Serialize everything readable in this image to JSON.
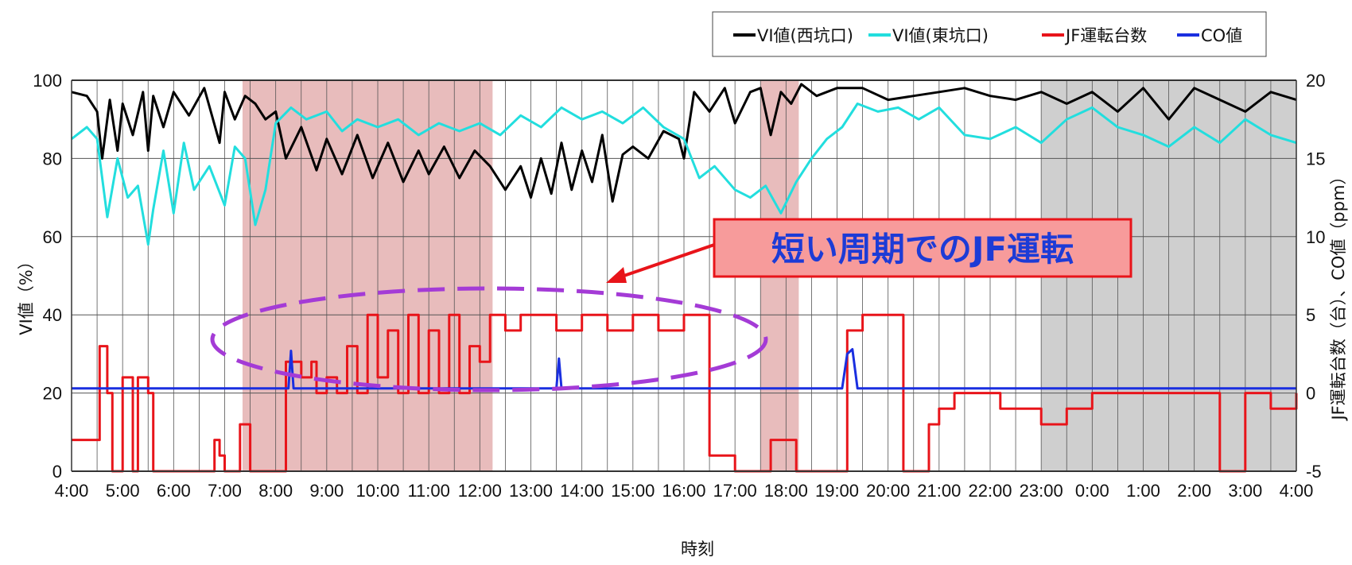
{
  "chart_data": {
    "type": "line",
    "title": "",
    "xlabel": "時刻",
    "ylabel_left": "VI値（%）",
    "ylabel_right": "JF運転台数（台）、CO値（ppm）",
    "x_ticks": [
      "4:00",
      "5:00",
      "6:00",
      "7:00",
      "8:00",
      "9:00",
      "10:00",
      "11:00",
      "12:00",
      "13:00",
      "14:00",
      "15:00",
      "16:00",
      "17:00",
      "18:00",
      "19:00",
      "20:00",
      "21:00",
      "22:00",
      "23:00",
      "0:00",
      "1:00",
      "2:00",
      "3:00",
      "4:00"
    ],
    "y_left_ticks": [
      "0",
      "20",
      "40",
      "60",
      "80",
      "100"
    ],
    "y_right_ticks": [
      "-5",
      "0",
      "5",
      "10",
      "15",
      "20"
    ],
    "ylim_left": [
      0,
      100
    ],
    "ylim_right": [
      -5,
      20
    ],
    "grid": true,
    "legend_position": "top-right",
    "colors": {
      "vi_west": "#000000",
      "vi_east": "#22dede",
      "jf": "#e8141a",
      "co": "#1a2fe0",
      "pink_band": "#e8bcbc",
      "gray_band": "#cfcfcf",
      "ellipse": "#a43bd6",
      "callout_fill": "#f79b9b",
      "callout_border": "#e8141a"
    },
    "shaded_bands": [
      {
        "type": "pink",
        "start_hour": 7.35,
        "end_hour": 12.25
      },
      {
        "type": "pink",
        "start_hour": 17.5,
        "end_hour": 18.25
      },
      {
        "type": "gray",
        "start_hour": 23.0,
        "end_hour": 28.0
      }
    ],
    "series": [
      {
        "name": "VI値(西坑口)",
        "key": "vi_west",
        "axis": "left",
        "x": [
          4.0,
          4.3,
          4.5,
          4.6,
          4.75,
          4.9,
          5.0,
          5.2,
          5.4,
          5.5,
          5.6,
          5.8,
          6.0,
          6.3,
          6.6,
          6.9,
          7.0,
          7.2,
          7.4,
          7.6,
          7.8,
          8.0,
          8.2,
          8.5,
          8.8,
          9.0,
          9.3,
          9.6,
          9.9,
          10.2,
          10.5,
          10.8,
          11.0,
          11.3,
          11.6,
          11.9,
          12.2,
          12.5,
          12.8,
          13.0,
          13.2,
          13.4,
          13.6,
          13.8,
          14.0,
          14.2,
          14.4,
          14.6,
          14.8,
          15.0,
          15.3,
          15.6,
          15.9,
          16.0,
          16.2,
          16.5,
          16.8,
          17.0,
          17.3,
          17.5,
          17.7,
          17.9,
          18.1,
          18.3,
          18.6,
          19.0,
          19.5,
          20.0,
          20.5,
          21.0,
          21.5,
          22.0,
          22.5,
          23.0,
          23.5,
          24.0,
          24.5,
          25.0,
          25.5,
          26.0,
          26.5,
          27.0,
          27.5,
          28.0
        ],
        "values": [
          97,
          96,
          92,
          80,
          95,
          82,
          94,
          86,
          97,
          82,
          96,
          88,
          97,
          91,
          98,
          84,
          97,
          90,
          96,
          94,
          90,
          92,
          80,
          88,
          77,
          85,
          76,
          86,
          75,
          84,
          74,
          82,
          76,
          83,
          75,
          82,
          78,
          72,
          78,
          70,
          80,
          71,
          84,
          72,
          82,
          74,
          86,
          69,
          81,
          83,
          80,
          87,
          85,
          80,
          97,
          92,
          98,
          89,
          97,
          98,
          86,
          97,
          94,
          99,
          96,
          98,
          98,
          95,
          96,
          97,
          98,
          96,
          95,
          97,
          94,
          97,
          92,
          98,
          90,
          98,
          95,
          92,
          97,
          95
        ],
        "note": "approximate trace"
      },
      {
        "name": "VI値(東坑口)",
        "key": "vi_east",
        "axis": "left",
        "x": [
          4.0,
          4.3,
          4.5,
          4.7,
          4.9,
          5.1,
          5.3,
          5.5,
          5.6,
          5.8,
          6.0,
          6.2,
          6.4,
          6.7,
          7.0,
          7.2,
          7.4,
          7.6,
          7.8,
          8.0,
          8.3,
          8.6,
          9.0,
          9.3,
          9.6,
          10.0,
          10.4,
          10.8,
          11.2,
          11.6,
          12.0,
          12.4,
          12.8,
          13.2,
          13.6,
          14.0,
          14.4,
          14.8,
          15.2,
          15.6,
          16.0,
          16.3,
          16.6,
          17.0,
          17.3,
          17.6,
          17.9,
          18.2,
          18.5,
          18.8,
          19.1,
          19.4,
          19.8,
          20.2,
          20.6,
          21.0,
          21.5,
          22.0,
          22.5,
          23.0,
          23.5,
          24.0,
          24.5,
          25.0,
          25.5,
          26.0,
          26.5,
          27.0,
          27.5,
          28.0
        ],
        "values": [
          85,
          88,
          85,
          65,
          80,
          70,
          73,
          58,
          67,
          82,
          66,
          84,
          72,
          78,
          68,
          83,
          80,
          63,
          72,
          89,
          93,
          90,
          92,
          87,
          90,
          88,
          90,
          86,
          89,
          87,
          89,
          86,
          91,
          88,
          93,
          90,
          92,
          89,
          93,
          88,
          85,
          75,
          78,
          72,
          70,
          73,
          66,
          74,
          80,
          85,
          88,
          94,
          92,
          93,
          90,
          93,
          86,
          85,
          88,
          84,
          90,
          93,
          88,
          86,
          83,
          88,
          84,
          90,
          86,
          84
        ],
        "note": "approximate trace"
      },
      {
        "name": "JF運転台数",
        "key": "jf",
        "axis": "right",
        "step": true,
        "x": [
          4.0,
          4.5,
          4.55,
          4.7,
          4.8,
          5.0,
          5.2,
          5.3,
          5.5,
          5.6,
          5.7,
          5.9,
          6.0,
          6.7,
          6.8,
          6.9,
          7.0,
          7.3,
          7.5,
          7.6,
          8.1,
          8.2,
          8.5,
          8.7,
          8.8,
          9.0,
          9.2,
          9.4,
          9.6,
          9.8,
          10.0,
          10.2,
          10.4,
          10.6,
          10.8,
          11.0,
          11.2,
          11.4,
          11.6,
          11.8,
          12.0,
          12.2,
          12.5,
          12.8,
          13.0,
          13.5,
          14.0,
          14.5,
          15.0,
          15.5,
          16.0,
          16.1,
          16.5,
          17.0,
          17.5,
          17.7,
          18.2,
          18.8,
          19.2,
          19.5,
          20.0,
          20.05,
          20.3,
          20.5,
          20.8,
          21.0,
          21.3,
          21.8,
          22.2,
          22.7,
          23.0,
          23.5,
          24.0,
          24.5,
          25.0,
          25.5,
          26.0,
          26.5,
          27.0,
          27.5,
          28.0
        ],
        "values": [
          -3,
          -3,
          3,
          0,
          -5,
          1,
          -5,
          1,
          0,
          -5,
          -5,
          -5,
          -5,
          -5,
          -3,
          -4,
          -5,
          -2,
          -5,
          -5,
          -5,
          2,
          1,
          2,
          0,
          1,
          0,
          3,
          0,
          5,
          1,
          4,
          0,
          5,
          0,
          4,
          0,
          5,
          0,
          3,
          2,
          5,
          4,
          5,
          5,
          4,
          5,
          4,
          5,
          4,
          5,
          5,
          -4,
          -5,
          -5,
          -3,
          -5,
          -5,
          4,
          5,
          5,
          5,
          -5,
          -5,
          -2,
          -1,
          0,
          0,
          -1,
          -1,
          -2,
          -1,
          0,
          0,
          0,
          0,
          0,
          -5,
          0,
          -1,
          0
        ],
        "note": "approximate trace"
      },
      {
        "name": "CO値",
        "key": "co",
        "axis": "right",
        "x": [
          4.0,
          8.25,
          8.3,
          8.35,
          8.4,
          13.5,
          13.55,
          13.6,
          19.1,
          19.2,
          19.3,
          19.4,
          28.0
        ],
        "values": [
          0.3,
          0.3,
          2.7,
          0.3,
          0.3,
          0.3,
          2.2,
          0.3,
          0.3,
          2.5,
          2.8,
          0.3,
          0.3
        ],
        "note": "approximate trace"
      }
    ],
    "annotations": [
      {
        "text": "短い周期でのJF運転"
      }
    ]
  }
}
